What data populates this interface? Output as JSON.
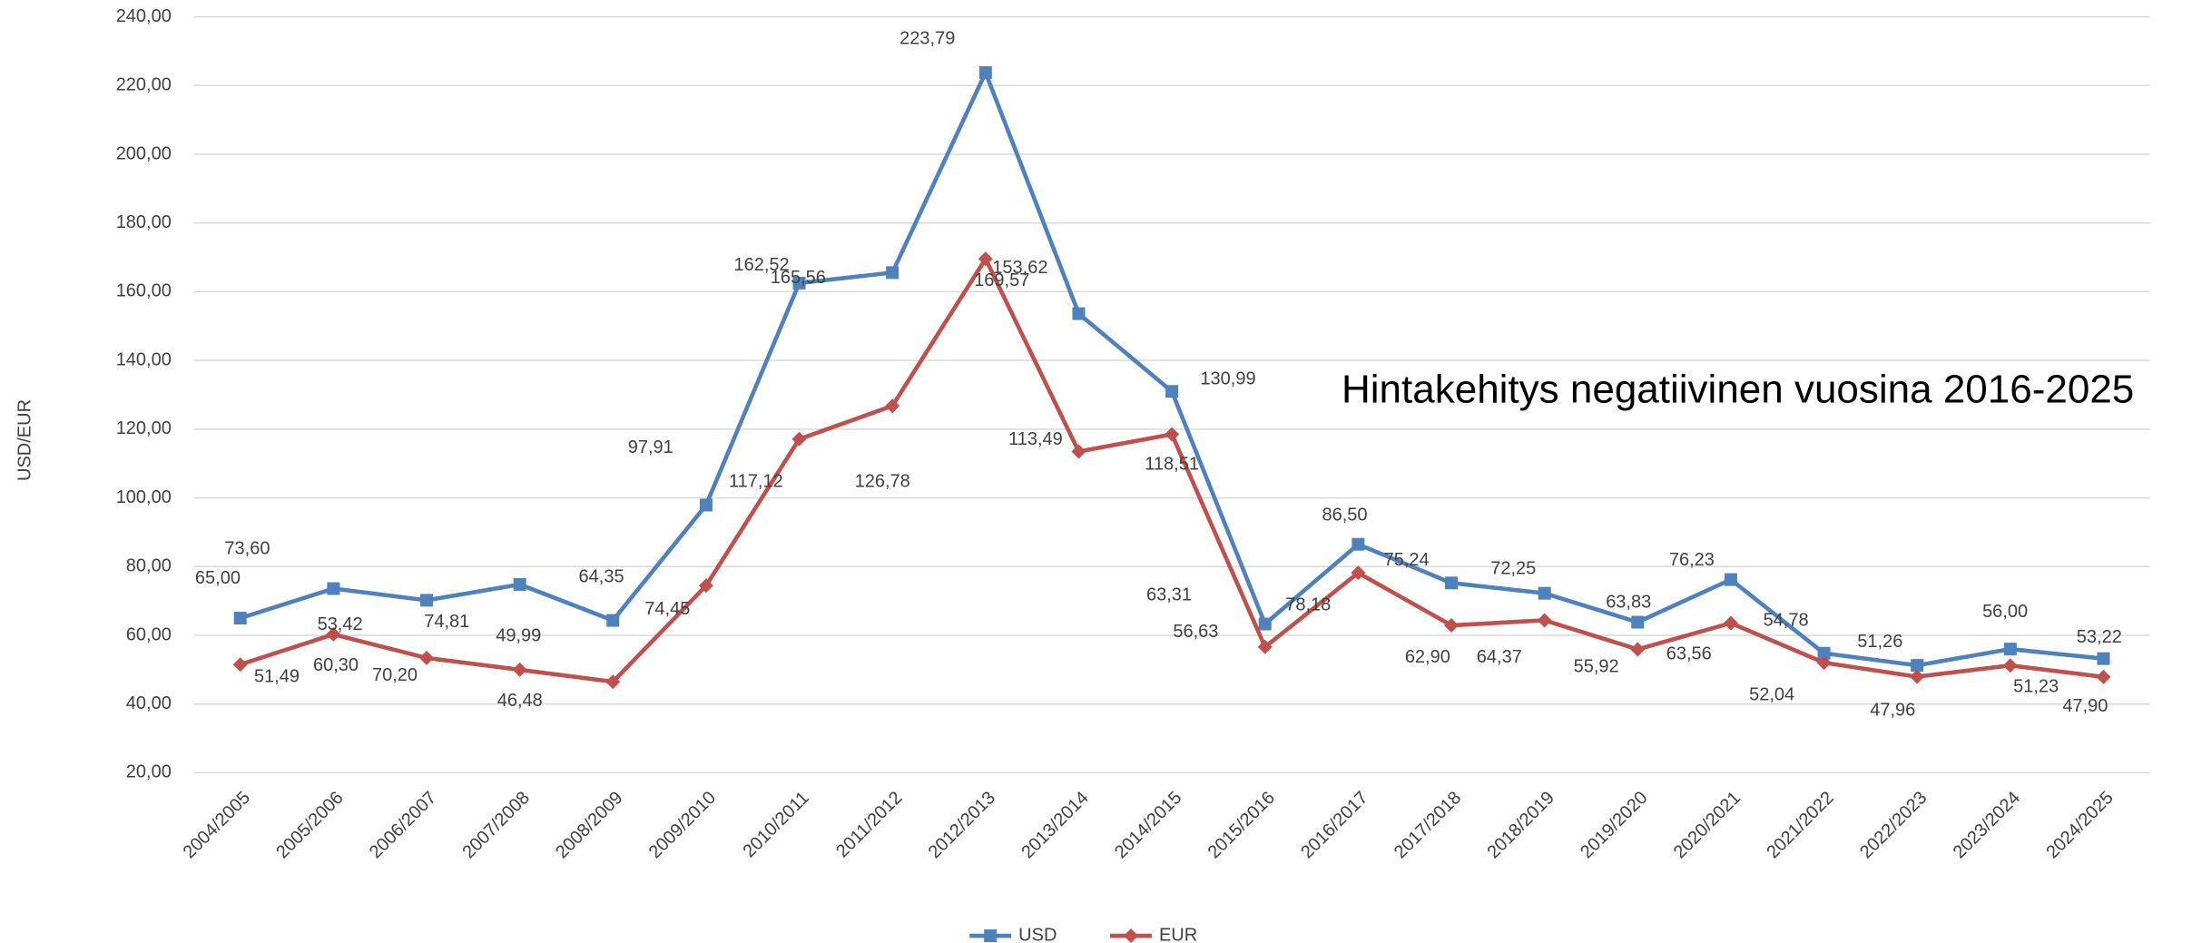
{
  "chart_data": {
    "type": "line",
    "y_label": "USD/EUR",
    "annotation": "Hintakehitys negatiivinen vuosina 2016-2025",
    "categories": [
      "2004/2005",
      "2005/2006",
      "2006/2007",
      "2007/2008",
      "2008/2009",
      "2009/2010",
      "2010/2011",
      "2011/2012",
      "2012/2013",
      "2013/2014",
      "2014/2015",
      "2015/2016",
      "2016/2017",
      "2017/2018",
      "2018/2019",
      "2019/2020",
      "2020/2021",
      "2021/2022",
      "2022/2023",
      "2023/2024",
      "2024/2025"
    ],
    "series": [
      {
        "name": "USD",
        "color": "#4f81bd",
        "marker": "square",
        "values": [
          65.0,
          73.6,
          70.2,
          74.81,
          64.35,
          97.91,
          162.52,
          165.56,
          223.79,
          153.62,
          130.99,
          63.31,
          86.5,
          75.24,
          72.25,
          63.83,
          76.23,
          54.78,
          51.26,
          56.0,
          53.22
        ],
        "value_labels": [
          "65,00",
          "73,60",
          "70,20",
          "74,81",
          "64,35",
          "97,91",
          "162,52",
          "165,56",
          "223,79",
          "153,62",
          "130,99",
          "63,31",
          "86,50",
          "75,24",
          "72,25",
          "63,83",
          "76,23",
          "54,78",
          "51,26",
          "56,00",
          "53,22"
        ]
      },
      {
        "name": "EUR",
        "color": "#c0504d",
        "marker": "diamond",
        "values": [
          51.49,
          60.3,
          53.42,
          49.99,
          46.48,
          74.45,
          117.12,
          126.78,
          169.57,
          113.49,
          118.51,
          56.63,
          78.18,
          62.9,
          64.37,
          55.92,
          63.56,
          52.04,
          47.96,
          51.23,
          47.9
        ],
        "value_labels": [
          "51,49",
          "60,30",
          "53,42",
          "49,99",
          "46,48",
          "74,45",
          "117,12",
          "126,78",
          "169,57",
          "113,49",
          "118,51",
          "56,63",
          "78,18",
          "62,90",
          "64,37",
          "55,92",
          "63,56",
          "52,04",
          "47,96",
          "51,23",
          "47,90"
        ]
      }
    ],
    "ylim": [
      20,
      240
    ],
    "yticks": [
      {
        "value": 20,
        "label": "20,00"
      },
      {
        "value": 40,
        "label": "40,00"
      },
      {
        "value": 60,
        "label": "60,00"
      },
      {
        "value": 80,
        "label": "80,00"
      },
      {
        "value": 100,
        "label": "100,00"
      },
      {
        "value": 120,
        "label": "120,00"
      },
      {
        "value": 140,
        "label": "140,00"
      },
      {
        "value": 160,
        "label": "160,00"
      },
      {
        "value": 180,
        "label": "180,00"
      },
      {
        "value": 200,
        "label": "200,00"
      },
      {
        "value": 220,
        "label": "220,00"
      },
      {
        "value": 240,
        "label": "240,00"
      }
    ],
    "grid": true,
    "legend": "bottom"
  }
}
